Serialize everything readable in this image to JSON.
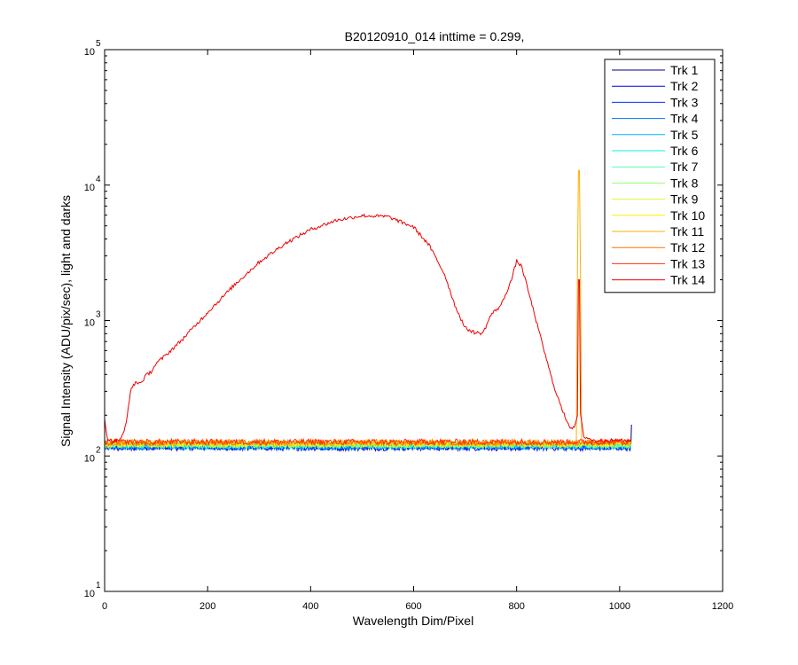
{
  "chart_data": {
    "type": "line",
    "title": "B20120910_014 inttime = 0.299,",
    "xlabel": "Wavelength Dim/Pixel",
    "ylabel": "Signal Intensity (ADU/pix/sec), light and darks",
    "xlim": [
      0,
      1200
    ],
    "ylim": [
      10,
      100000
    ],
    "yscale": "log",
    "grid": false,
    "legend_position": "top-right",
    "x_ticks": [
      0,
      200,
      400,
      600,
      800,
      1000,
      1200
    ],
    "x_tick_labels": [
      "0",
      "200",
      "400",
      "600",
      "800",
      "1000",
      "1200"
    ],
    "y_ticks": [
      10,
      100,
      1000,
      10000,
      100000
    ],
    "y_tick_labels": [
      {
        "base": "10",
        "exp": "1"
      },
      {
        "base": "10",
        "exp": "2"
      },
      {
        "base": "10",
        "exp": "3"
      },
      {
        "base": "10",
        "exp": "4"
      },
      {
        "base": "10",
        "exp": "5"
      }
    ],
    "x_range_data": [
      0,
      1023
    ],
    "series": [
      {
        "name": "Trk 1",
        "color": "#00008F",
        "level": 118
      },
      {
        "name": "Trk 2",
        "color": "#0000DF",
        "level": 115
      },
      {
        "name": "Trk 3",
        "color": "#0030FF",
        "level": 116
      },
      {
        "name": "Trk 4",
        "color": "#0070FF",
        "level": 117
      },
      {
        "name": "Trk 5",
        "color": "#00B0FF",
        "level": 118
      },
      {
        "name": "Trk 6",
        "color": "#10EFEF",
        "level": 119
      },
      {
        "name": "Trk 7",
        "color": "#50FFAF",
        "level": 120
      },
      {
        "name": "Trk 8",
        "color": "#8FFF70",
        "level": 121
      },
      {
        "name": "Trk 9",
        "color": "#CFFF30",
        "level": 122
      },
      {
        "name": "Trk 10",
        "color": "#FFEF00",
        "level": 123
      },
      {
        "name": "Trk 11",
        "color": "#FFAF00",
        "level": 125,
        "peak": {
          "x": 921,
          "y": 32000
        }
      },
      {
        "name": "Trk 12",
        "color": "#FF7000",
        "level": 126
      },
      {
        "name": "Trk 13",
        "color": "#FF3000",
        "level": 127
      },
      {
        "name": "Trk 14",
        "color": "#EF0000",
        "level": 130,
        "points": [
          [
            0,
            190
          ],
          [
            5,
            135
          ],
          [
            15,
            128
          ],
          [
            25,
            130
          ],
          [
            35,
            140
          ],
          [
            42,
            175
          ],
          [
            50,
            300
          ],
          [
            60,
            350
          ],
          [
            70,
            345
          ],
          [
            80,
            390
          ],
          [
            90,
            420
          ],
          [
            100,
            480
          ],
          [
            120,
            560
          ],
          [
            150,
            720
          ],
          [
            200,
            1150
          ],
          [
            250,
            1800
          ],
          [
            300,
            2700
          ],
          [
            350,
            3700
          ],
          [
            400,
            4700
          ],
          [
            450,
            5500
          ],
          [
            500,
            5950
          ],
          [
            550,
            5850
          ],
          [
            600,
            4900
          ],
          [
            630,
            3600
          ],
          [
            660,
            2200
          ],
          [
            680,
            1300
          ],
          [
            700,
            880
          ],
          [
            720,
            810
          ],
          [
            735,
            810
          ],
          [
            750,
            1100
          ],
          [
            770,
            1300
          ],
          [
            790,
            2000
          ],
          [
            800,
            2750
          ],
          [
            810,
            2500
          ],
          [
            830,
            1300
          ],
          [
            850,
            670
          ],
          [
            870,
            350
          ],
          [
            890,
            210
          ],
          [
            905,
            160
          ],
          [
            915,
            170
          ],
          [
            918,
            200
          ],
          [
            920,
            2000
          ],
          [
            921,
            9500
          ],
          [
            922,
            2000
          ],
          [
            924,
            200
          ],
          [
            930,
            140
          ],
          [
            950,
            130
          ],
          [
            1000,
            130
          ],
          [
            1023,
            130
          ]
        ]
      }
    ]
  }
}
